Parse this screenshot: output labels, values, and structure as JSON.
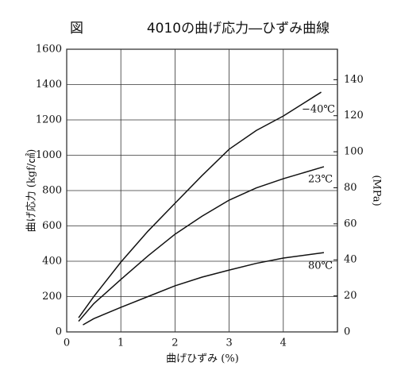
{
  "chart_data": {
    "type": "line",
    "figure_label": "図",
    "title": "4010の曲げ応力―ひずみ曲線",
    "x_label": "曲げひずみ (%)",
    "y_label": "曲げ応力 (kgf/㎠)",
    "y2_label": "(MPa)",
    "xlim": [
      0,
      5
    ],
    "xticks": [
      0,
      1,
      2,
      3,
      4
    ],
    "ylim": [
      0,
      1600
    ],
    "yticks": [
      0,
      200,
      400,
      600,
      800,
      1000,
      1200,
      1400,
      1600
    ],
    "y2lim": [
      0,
      156.9
    ],
    "y2ticks": [
      0,
      20,
      40,
      60,
      80,
      100,
      120,
      140
    ],
    "grid": true,
    "series": [
      {
        "name": "−40℃",
        "color": "#111111",
        "x": [
          0.22,
          0.5,
          1,
          1.5,
          2,
          2.5,
          3,
          3.5,
          4,
          4.7
        ],
        "values": [
          80,
          200,
          395,
          570,
          728,
          885,
          1034,
          1140,
          1222,
          1357
        ]
      },
      {
        "name": "23℃",
        "color": "#111111",
        "x": [
          0.22,
          0.5,
          1,
          1.5,
          2,
          2.5,
          3,
          3.5,
          4,
          4.75
        ],
        "values": [
          60,
          160,
          297,
          430,
          553,
          655,
          746,
          815,
          867,
          935
        ]
      },
      {
        "name": "80℃",
        "color": "#111111",
        "x": [
          0.3,
          0.5,
          1,
          1.5,
          2,
          2.5,
          3,
          3.5,
          4,
          4.75
        ],
        "values": [
          40,
          75,
          139,
          200,
          261,
          310,
          350,
          388,
          418,
          449
        ]
      }
    ]
  }
}
